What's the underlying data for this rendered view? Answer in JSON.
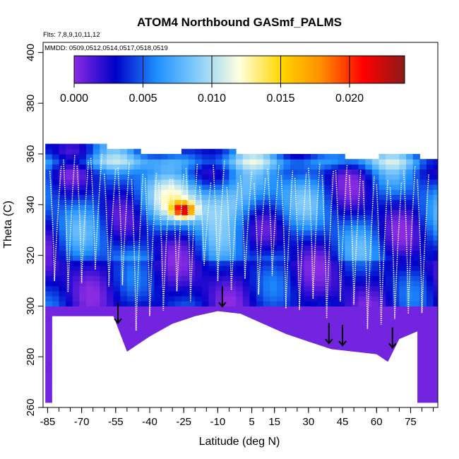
{
  "chart_data": {
    "type": "heatmap",
    "title": "ATOM4 Northbound GASmf_PALMS",
    "subtitle_flights": "Flts: 7,8,9,10,11,12",
    "subtitle_dates": "MMDD: 0509,0512,0514,0517,0518,0519",
    "xlabel": "Latitude (deg N)",
    "ylabel": "Theta (C)",
    "xlim": [
      -87,
      87
    ],
    "ylim": [
      260,
      404
    ],
    "x_ticks": [
      -85,
      -70,
      -55,
      -40,
      -25,
      -10,
      5,
      15,
      30,
      45,
      60,
      75
    ],
    "x_tick_labels": [
      "-85",
      "-70",
      "-55",
      "-40",
      "-25",
      "-10",
      "5",
      "15",
      "30",
      "45",
      "60",
      "75"
    ],
    "y_ticks": [
      260,
      280,
      300,
      320,
      340,
      360,
      380,
      400
    ],
    "y_tick_labels": [
      "260",
      "280",
      "300",
      "320",
      "340",
      "360",
      "380",
      "400"
    ],
    "colorbar": {
      "min": 0.0,
      "max": 0.024,
      "ticks": [
        0.0,
        0.005,
        0.01,
        0.015,
        0.02
      ],
      "tick_labels": [
        "0.000",
        "0.005",
        "0.010",
        "0.015",
        "0.020"
      ],
      "colors": [
        "#8a2be2",
        "#0000c8",
        "#1e90ff",
        "#87cefa",
        "#ffffe0",
        "#ffd700",
        "#ff8c00",
        "#ff0000",
        "#8b1a1a"
      ]
    },
    "ground_arrows_latitude": [
      -54,
      -8,
      39,
      45,
      67
    ],
    "tropopause_theta": {
      "lat": [
        -85,
        -70,
        -60,
        -50,
        -40,
        -25,
        -10,
        5,
        15,
        30,
        45,
        60,
        75,
        85
      ],
      "theta": [
        362,
        364,
        362,
        361,
        359,
        360,
        361,
        359,
        360,
        360,
        358,
        358,
        359,
        357
      ]
    },
    "surface_theta": {
      "lat": [
        -83,
        -56,
        -50,
        -45,
        -40,
        -30,
        -20,
        -10,
        0,
        10,
        20,
        30,
        40,
        50,
        60,
        65,
        70,
        78
      ],
      "theta": [
        296,
        296,
        282,
        285,
        288,
        293,
        296,
        298,
        297,
        293,
        289,
        286,
        283,
        282,
        281,
        278,
        287,
        290
      ]
    }
  }
}
